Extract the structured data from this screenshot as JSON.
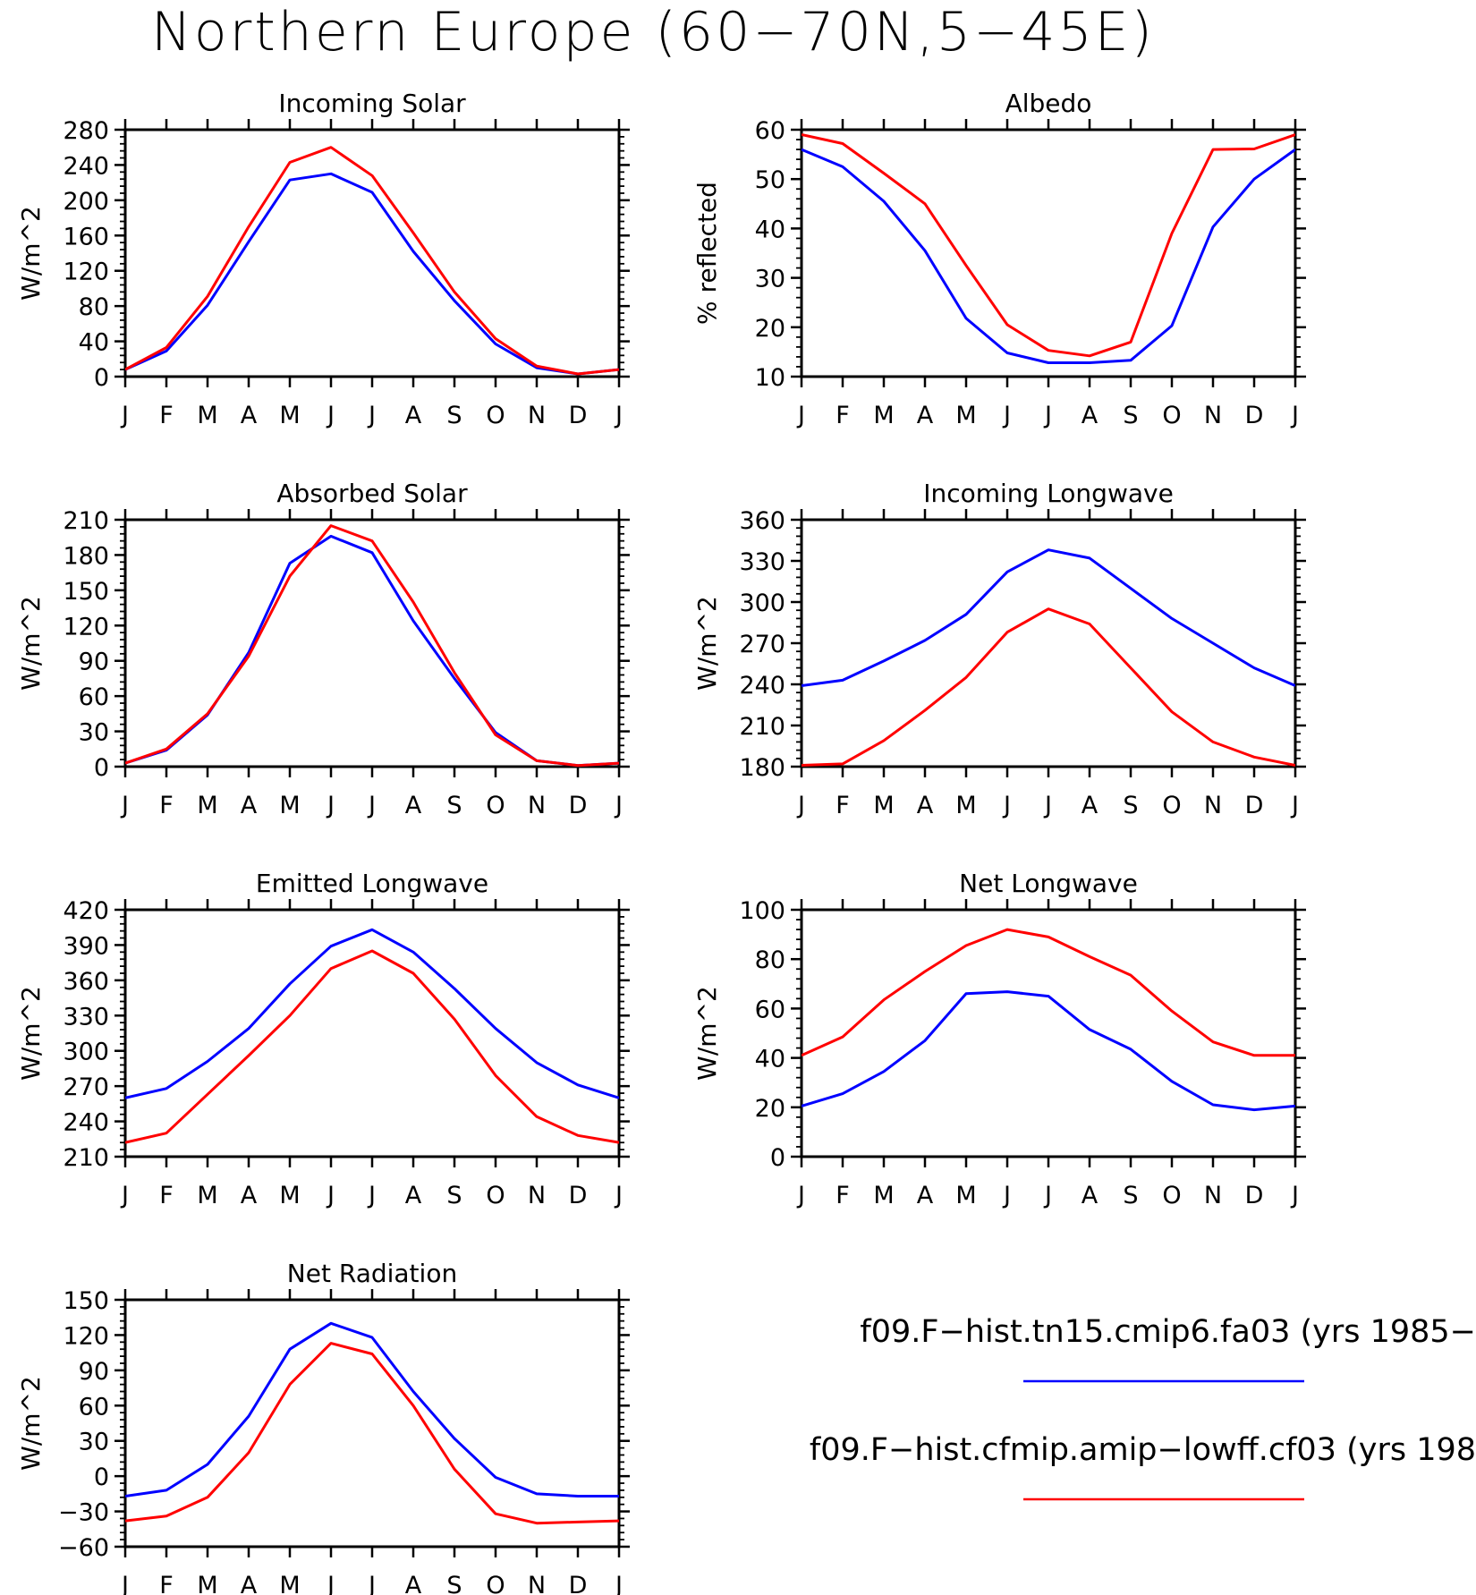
{
  "page_title": "Northern Europe (60−70N,5−45E)",
  "months": [
    "J",
    "F",
    "M",
    "A",
    "M",
    "J",
    "J",
    "A",
    "S",
    "O",
    "N",
    "D",
    "J"
  ],
  "colors": {
    "case1": "#0000ff",
    "case2": "#ff0000"
  },
  "legend": [
    {
      "label": "f09.F−hist.tn15.cmip6.fa03 (yrs 1985−",
      "color": "#0000ff"
    },
    {
      "label": "f09.F−hist.cfmip.amip−lowff.cf03 (yrs 198",
      "color": "#ff0000"
    }
  ],
  "chart_data": [
    {
      "type": "line",
      "title": "Incoming Solar",
      "ylabel": "W/m^2",
      "ylim": [
        0,
        280
      ],
      "yticks": [
        0,
        40,
        80,
        120,
        160,
        200,
        240,
        280
      ],
      "x": [
        "J",
        "F",
        "M",
        "A",
        "M",
        "J",
        "J",
        "A",
        "S",
        "O",
        "N",
        "D",
        "J"
      ],
      "series": [
        {
          "color": "#0000ff",
          "values": [
            8,
            29,
            81,
            153,
            223,
            230,
            209,
            142,
            86,
            37,
            10,
            3,
            8
          ]
        },
        {
          "color": "#ff0000",
          "values": [
            8,
            33,
            91,
            170,
            243,
            260,
            228,
            163,
            96,
            43,
            12,
            3,
            8
          ]
        }
      ]
    },
    {
      "type": "line",
      "title": "Albedo",
      "ylabel": "% reflected",
      "ylim": [
        10,
        60
      ],
      "yticks": [
        10,
        20,
        30,
        40,
        50,
        60
      ],
      "x": [
        "J",
        "F",
        "M",
        "A",
        "M",
        "J",
        "J",
        "A",
        "S",
        "O",
        "N",
        "D",
        "J"
      ],
      "series": [
        {
          "color": "#0000ff",
          "values": [
            56,
            52.5,
            45.5,
            35.5,
            21.8,
            14.8,
            12.8,
            12.8,
            13.3,
            20.3,
            40.3,
            50,
            56
          ]
        },
        {
          "color": "#ff0000",
          "values": [
            59,
            57.2,
            51.2,
            45,
            32.5,
            20.5,
            15.3,
            14.2,
            17,
            39,
            56,
            56.1,
            59
          ]
        }
      ]
    },
    {
      "type": "line",
      "title": "Absorbed Solar",
      "ylabel": "W/m^2",
      "ylim": [
        0,
        210
      ],
      "yticks": [
        0,
        30,
        60,
        90,
        120,
        150,
        180,
        210
      ],
      "x": [
        "J",
        "F",
        "M",
        "A",
        "M",
        "J",
        "J",
        "A",
        "S",
        "O",
        "N",
        "D",
        "J"
      ],
      "series": [
        {
          "color": "#0000ff",
          "values": [
            3,
            14,
            44,
            97,
            173,
            196,
            182,
            124,
            75,
            29,
            5,
            1,
            3
          ]
        },
        {
          "color": "#ff0000",
          "values": [
            3,
            15,
            45,
            94,
            162,
            205,
            192,
            140,
            80,
            27,
            5,
            1,
            3
          ]
        }
      ]
    },
    {
      "type": "line",
      "title": "Incoming Longwave",
      "ylabel": "W/m^2",
      "ylim": [
        180,
        360
      ],
      "yticks": [
        180,
        210,
        240,
        270,
        300,
        330,
        360
      ],
      "x": [
        "J",
        "F",
        "M",
        "A",
        "M",
        "J",
        "J",
        "A",
        "S",
        "O",
        "N",
        "D",
        "J"
      ],
      "series": [
        {
          "color": "#0000ff",
          "values": [
            239,
            243,
            257,
            272,
            291,
            322,
            338,
            332,
            310,
            288,
            270,
            252,
            239
          ]
        },
        {
          "color": "#ff0000",
          "values": [
            181,
            182,
            199,
            221,
            245,
            278,
            295,
            284,
            252,
            220,
            198,
            187,
            181
          ]
        }
      ]
    },
    {
      "type": "line",
      "title": "Emitted Longwave",
      "ylabel": "W/m^2",
      "ylim": [
        210,
        420
      ],
      "yticks": [
        210,
        240,
        270,
        300,
        330,
        360,
        390,
        420
      ],
      "x": [
        "J",
        "F",
        "M",
        "A",
        "M",
        "J",
        "J",
        "A",
        "S",
        "O",
        "N",
        "D",
        "J"
      ],
      "series": [
        {
          "color": "#0000ff",
          "values": [
            260,
            268,
            291,
            319,
            357,
            389,
            403,
            384,
            353,
            319,
            290,
            271,
            260
          ]
        },
        {
          "color": "#ff0000",
          "values": [
            222,
            230,
            263,
            296,
            330,
            370,
            385,
            366,
            327,
            279,
            244,
            228,
            222
          ]
        }
      ]
    },
    {
      "type": "line",
      "title": "Net Longwave",
      "ylabel": "W/m^2",
      "ylim": [
        0,
        100
      ],
      "yticks": [
        0,
        20,
        40,
        60,
        80,
        100
      ],
      "x": [
        "J",
        "F",
        "M",
        "A",
        "M",
        "J",
        "J",
        "A",
        "S",
        "O",
        "N",
        "D",
        "J"
      ],
      "series": [
        {
          "color": "#0000ff",
          "values": [
            20.5,
            25.5,
            34.5,
            47,
            66,
            66.8,
            65,
            51.5,
            43.5,
            30.5,
            21,
            19,
            20.5
          ]
        },
        {
          "color": "#ff0000",
          "values": [
            41,
            48.5,
            63.5,
            75,
            85.5,
            92,
            89,
            81,
            73.5,
            59,
            46.5,
            41,
            41
          ]
        }
      ]
    },
    {
      "type": "line",
      "title": "Net Radiation",
      "ylabel": "W/m^2",
      "ylim": [
        -60,
        150
      ],
      "yticks": [
        -60,
        -30,
        0,
        30,
        60,
        90,
        120,
        150
      ],
      "x": [
        "J",
        "F",
        "M",
        "A",
        "M",
        "J",
        "J",
        "A",
        "S",
        "O",
        "N",
        "D",
        "J"
      ],
      "series": [
        {
          "color": "#0000ff",
          "values": [
            -17,
            -12,
            10,
            51,
            108,
            130,
            118,
            72,
            32,
            -1,
            -15,
            -17,
            -17
          ]
        },
        {
          "color": "#ff0000",
          "values": [
            -38,
            -34,
            -18,
            20,
            78,
            113,
            104,
            60,
            6,
            -32,
            -40,
            -39,
            -38
          ]
        }
      ]
    }
  ]
}
